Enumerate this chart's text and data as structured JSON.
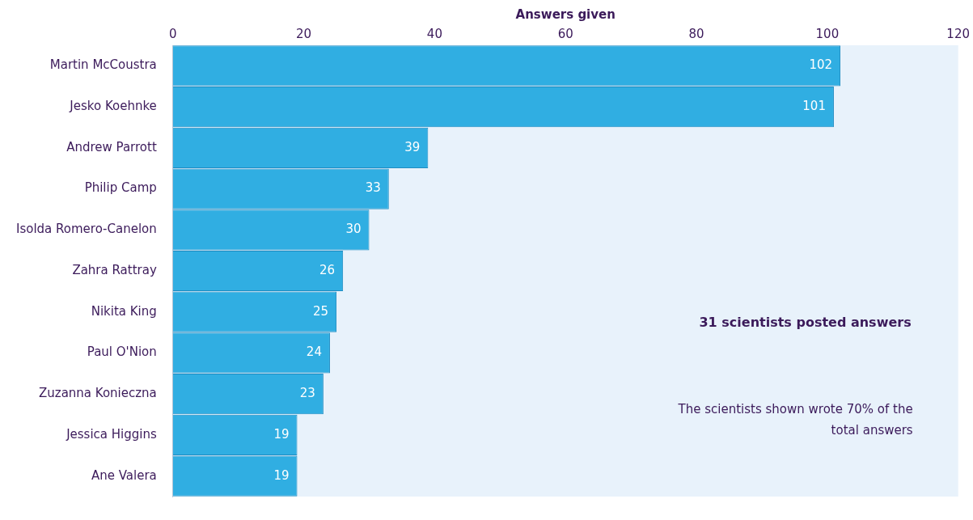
{
  "chart_data": {
    "type": "bar",
    "orientation": "horizontal",
    "xlabel": "Answers given",
    "categories": [
      "Martin McCoustra",
      "Jesko Koehnke",
      "Andrew Parrott",
      "Philip Camp",
      "Isolda Romero-Canelon",
      "Zahra Rattray",
      "Nikita King",
      "Paul O'Nion",
      "Zuzanna Konieczna",
      "Jessica Higgins",
      "Ane Valera"
    ],
    "values": [
      102,
      101,
      39,
      33,
      30,
      26,
      25,
      24,
      23,
      19,
      19
    ],
    "color": "#30aee2",
    "xlim": [
      0,
      120
    ],
    "xticks": [
      0,
      20,
      40,
      60,
      80,
      100,
      120
    ],
    "data_labels": true,
    "grid": false,
    "legend": false,
    "annotations": [
      "31 scientists posted answers",
      "The scientists shown wrote 70% of the total answers"
    ]
  }
}
